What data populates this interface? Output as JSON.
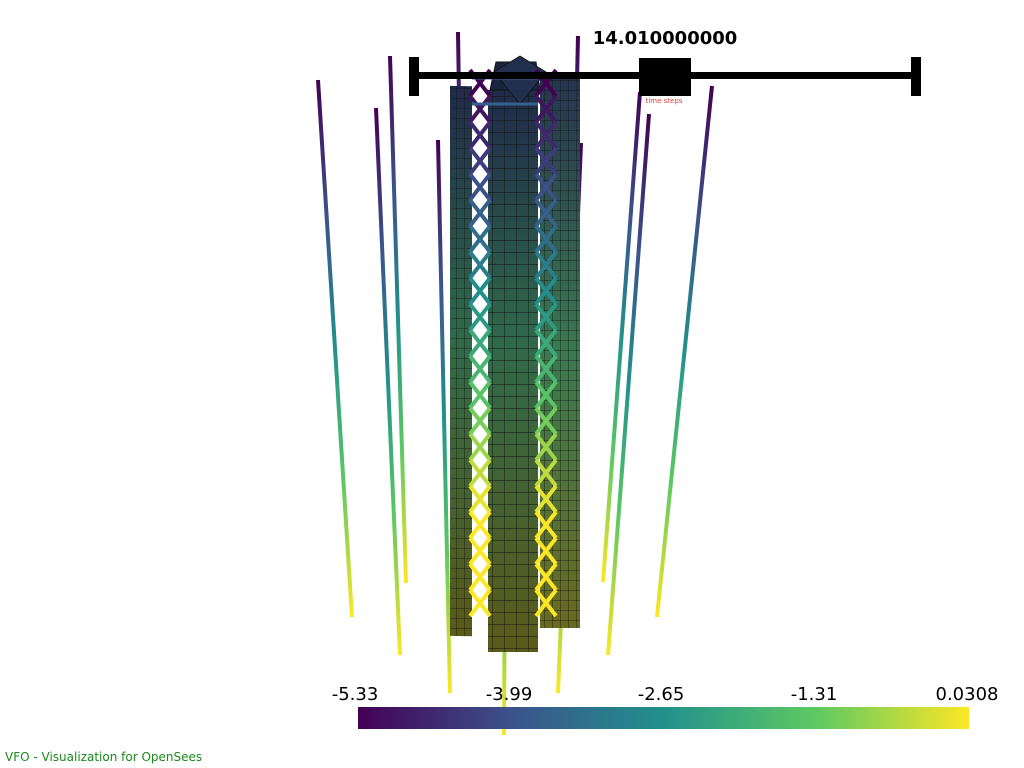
{
  "app": {
    "footer_text": "VFO - Visualization for OpenSees"
  },
  "time_slider": {
    "value_label": "14.010000000",
    "title": "time steps",
    "fraction": 0.5,
    "color": "#000000",
    "title_color": "#e04040"
  },
  "colorbar": {
    "colormap": "viridis",
    "min": -5.33,
    "max": 0.0308,
    "tick_labels": [
      "-5.33",
      "-3.99",
      "-2.65",
      "-1.31",
      "0.0308"
    ]
  },
  "colors": {
    "viridis": [
      "#440154",
      "#3b528b",
      "#21918c",
      "#5ec962",
      "#fde725"
    ],
    "edge": "#111111",
    "background": "#ffffff"
  }
}
